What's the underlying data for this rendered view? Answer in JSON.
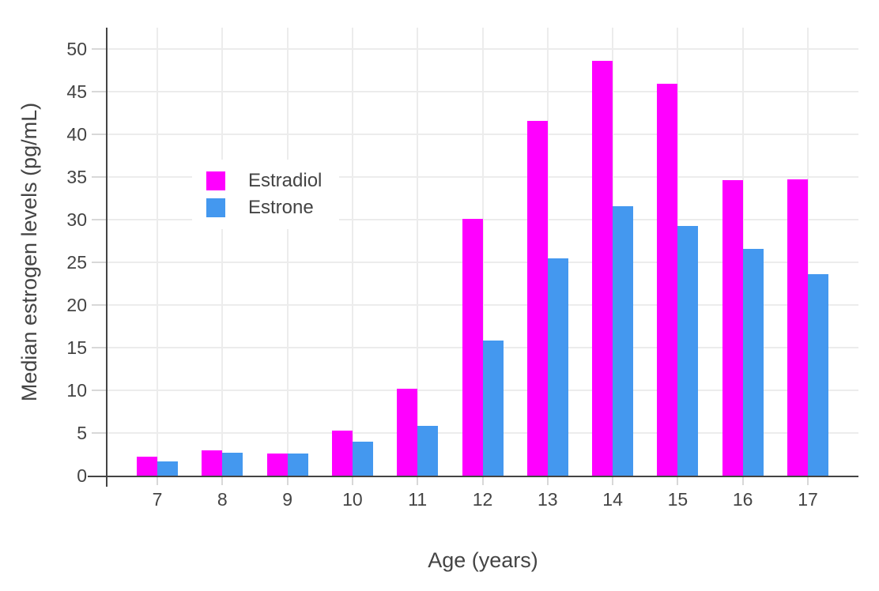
{
  "chart_data": {
    "type": "bar",
    "title": "",
    "xlabel": "Age (years)",
    "ylabel": "Median estrogen levels (pg/mL)",
    "categories": [
      "7",
      "8",
      "9",
      "10",
      "11",
      "12",
      "13",
      "14",
      "15",
      "16",
      "17"
    ],
    "series": [
      {
        "name": "Estradiol",
        "color": "#FF00FF",
        "values": [
          2.2,
          3.0,
          2.6,
          5.3,
          10.2,
          30.1,
          41.6,
          48.6,
          45.9,
          34.6,
          34.7
        ]
      },
      {
        "name": "Estrone",
        "color": "#4498EF",
        "values": [
          1.7,
          2.7,
          2.6,
          4.0,
          5.8,
          15.8,
          25.5,
          31.6,
          29.3,
          26.6,
          23.6
        ]
      }
    ],
    "ylim": [
      0,
      52.5
    ],
    "yticks": [
      0,
      5,
      10,
      15,
      20,
      25,
      30,
      35,
      40,
      45,
      50
    ],
    "grid": true,
    "legend_position": "inside-top-left"
  },
  "styles": {
    "background": "#FFFFFF",
    "text_color": "#444444",
    "axis_line_color": "#444444",
    "gridline_color": "#ECECEC",
    "tick_color": "#D8D8D8"
  }
}
